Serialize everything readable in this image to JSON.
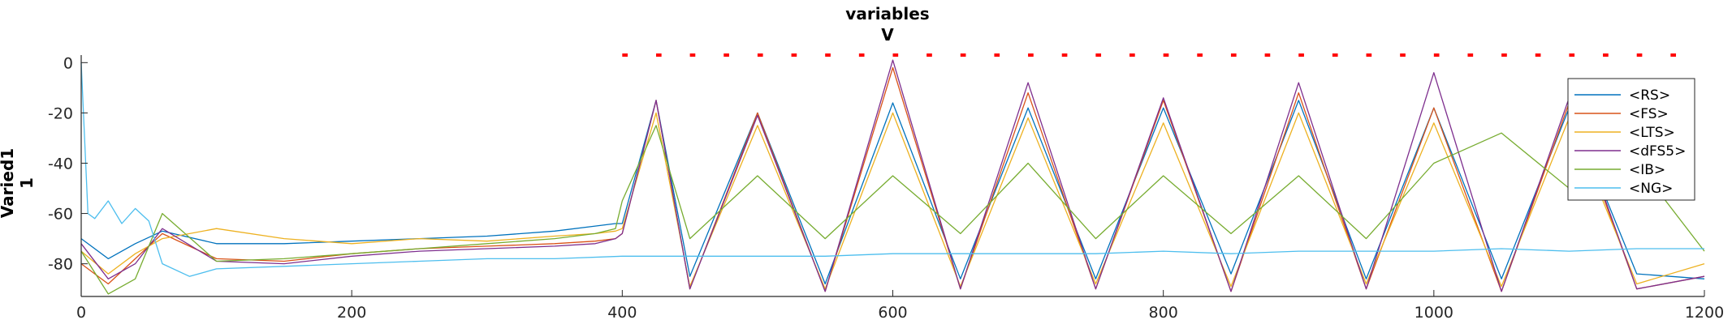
{
  "chart_data": {
    "type": "line",
    "title": "variables",
    "subtitle": "V",
    "ylabel": [
      "Varied1",
      "1"
    ],
    "xlabel": "",
    "xlim": [
      0,
      1200
    ],
    "ylim": [
      -93,
      3
    ],
    "xticks": [
      0,
      200,
      400,
      600,
      800,
      1000,
      1200
    ],
    "yticks": [
      0,
      -20,
      -40,
      -60,
      -80
    ],
    "xtick_labels": [
      "0",
      "200",
      "400",
      "600",
      "800",
      "1000",
      "1200"
    ],
    "ytick_labels": [
      "0",
      "-20",
      "-40",
      "-60",
      "-80"
    ],
    "grid": false,
    "legend_position": "top-right",
    "pulse_markers": {
      "y": 3,
      "color": "#ff0000",
      "x_start": 400,
      "period": 25,
      "count": 32
    },
    "series": [
      {
        "name": "<RS>",
        "color": "#0072bd",
        "x": [
          0,
          20,
          40,
          60,
          100,
          150,
          200,
          250,
          300,
          350,
          380,
          395,
          400,
          425,
          450,
          500,
          550,
          600,
          650,
          700,
          750,
          800,
          850,
          900,
          950,
          1000,
          1050,
          1100,
          1150,
          1200
        ],
        "y": [
          -70,
          -78,
          -72,
          -67,
          -72,
          -72,
          -71,
          -70,
          -69,
          -67,
          -65,
          -64,
          -64,
          -15,
          -85,
          -20,
          -88,
          -16,
          -86,
          -18,
          -86,
          -18,
          -84,
          -15,
          -86,
          -18,
          -86,
          -18,
          -84,
          -86
        ]
      },
      {
        "name": "<FS>",
        "color": "#d95319",
        "x": [
          0,
          20,
          40,
          60,
          100,
          150,
          200,
          250,
          300,
          350,
          380,
          395,
          400,
          425,
          450,
          500,
          550,
          600,
          650,
          700,
          750,
          800,
          850,
          900,
          950,
          1000,
          1050,
          1100,
          1150,
          1200
        ],
        "y": [
          -80,
          -88,
          -78,
          -68,
          -78,
          -79,
          -76,
          -74,
          -73,
          -72,
          -71,
          -70,
          -68,
          -15,
          -90,
          -20,
          -91,
          -2,
          -90,
          -12,
          -90,
          -15,
          -91,
          -12,
          -90,
          -18,
          -91,
          -16,
          -90,
          -85
        ]
      },
      {
        "name": "<LTS>",
        "color": "#edb120",
        "x": [
          0,
          20,
          40,
          60,
          100,
          150,
          200,
          250,
          300,
          350,
          380,
          395,
          400,
          425,
          450,
          500,
          550,
          600,
          650,
          700,
          750,
          800,
          850,
          900,
          950,
          1000,
          1050,
          1100,
          1150,
          1200
        ],
        "y": [
          -75,
          -84,
          -76,
          -70,
          -66,
          -70,
          -72,
          -70,
          -71,
          -69,
          -68,
          -67,
          -66,
          -20,
          -89,
          -25,
          -90,
          -20,
          -89,
          -22,
          -88,
          -24,
          -89,
          -20,
          -88,
          -24,
          -89,
          -22,
          -88,
          -80
        ]
      },
      {
        "name": "<dFS5>",
        "color": "#7e2f8e",
        "x": [
          0,
          20,
          40,
          60,
          100,
          150,
          200,
          250,
          300,
          350,
          380,
          395,
          400,
          425,
          450,
          500,
          550,
          600,
          650,
          700,
          750,
          800,
          850,
          900,
          950,
          1000,
          1050,
          1100,
          1150,
          1200
        ],
        "y": [
          -72,
          -86,
          -80,
          -66,
          -79,
          -80,
          -77,
          -75,
          -74,
          -73,
          -72,
          -70,
          -68,
          -15,
          -90,
          -21,
          -91,
          1,
          -90,
          -8,
          -90,
          -14,
          -91,
          -8,
          -90,
          -4,
          -91,
          -14,
          -90,
          -85
        ]
      },
      {
        "name": "<IB>",
        "color": "#77ac30",
        "x": [
          0,
          20,
          40,
          60,
          100,
          150,
          200,
          250,
          300,
          350,
          380,
          395,
          400,
          425,
          450,
          500,
          550,
          600,
          650,
          700,
          750,
          800,
          850,
          900,
          950,
          1000,
          1050,
          1100,
          1150,
          1200
        ],
        "y": [
          -75,
          -92,
          -86,
          -60,
          -79,
          -78,
          -76,
          -74,
          -72,
          -70,
          -68,
          -66,
          -55,
          -25,
          -70,
          -45,
          -70,
          -45,
          -68,
          -40,
          -70,
          -45,
          -68,
          -45,
          -70,
          -40,
          -28,
          -50,
          -40,
          -75
        ]
      },
      {
        "name": "<NG>",
        "color": "#4dbeee",
        "x": [
          0,
          5,
          10,
          20,
          30,
          40,
          50,
          60,
          80,
          100,
          150,
          200,
          250,
          300,
          350,
          400,
          450,
          500,
          550,
          600,
          650,
          700,
          750,
          800,
          850,
          900,
          950,
          1000,
          1050,
          1100,
          1150,
          1200
        ],
        "y": [
          0,
          -60,
          -62,
          -55,
          -64,
          -58,
          -63,
          -80,
          -85,
          -82,
          -81,
          -80,
          -79,
          -78,
          -78,
          -77,
          -77,
          -77,
          -77,
          -76,
          -76,
          -76,
          -76,
          -75,
          -76,
          -75,
          -75,
          -75,
          -74,
          -75,
          -74,
          -74
        ]
      }
    ]
  }
}
